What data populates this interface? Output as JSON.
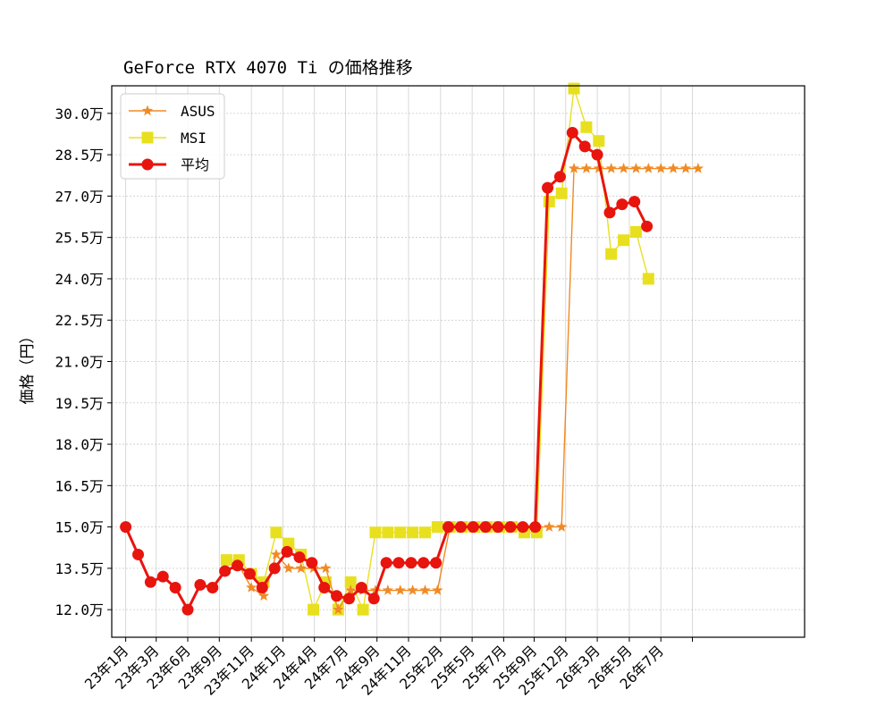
{
  "chart_data": {
    "type": "line",
    "title": "GeForce RTX 4070 Ti の価格推移",
    "xlabel": "",
    "ylabel": "価格（円）",
    "ylim": [
      11.0,
      31.0
    ],
    "yticks": [
      "12.0万",
      "13.5万",
      "15.0万",
      "16.5万",
      "18.0万",
      "19.5万",
      "21.0万",
      "22.5万",
      "24.0万",
      "25.5万",
      "27.0万",
      "28.5万",
      "30.0万"
    ],
    "ytick_values": [
      12.0,
      13.5,
      15.0,
      16.5,
      18.0,
      19.5,
      21.0,
      22.5,
      24.0,
      25.5,
      27.0,
      28.5,
      30.0
    ],
    "xlim": [
      "2022-12-05",
      "2026-08-06"
    ],
    "x_ticks": [
      {
        "label": "23年1月",
        "date": "2023-01-01"
      },
      {
        "label": "23年3月",
        "date": "2023-03-01"
      },
      {
        "label": "23年6月",
        "date": "2023-05-01"
      },
      {
        "label": "23年9月",
        "date": "2023-07-01"
      },
      {
        "label": "23年11月",
        "date": "2023-09-01"
      },
      {
        "label": "24年1月",
        "date": "2023-11-01"
      },
      {
        "label": "24年4月",
        "date": "2024-01-01"
      },
      {
        "label": "24年7月",
        "date": "2024-03-01"
      },
      {
        "label": "24年9月",
        "date": "2024-05-01"
      },
      {
        "label": "24年11月",
        "date": "2024-07-01"
      },
      {
        "label": "25年2月",
        "date": "2024-09-01"
      },
      {
        "label": "25年5月",
        "date": "2024-11-01"
      },
      {
        "label": "25年7月",
        "date": "2025-01-01"
      },
      {
        "label": "25年9月",
        "date": "2025-03-01"
      },
      {
        "label": "25年12月",
        "date": "2025-05-01"
      },
      {
        "label": "26年3月",
        "date": "2025-07-01"
      },
      {
        "label": "26年5月",
        "date": "2025-09-01"
      },
      {
        "label": "26年7月",
        "date": "2025-11-01"
      },
      {
        "label": "",
        "date": "2026-01-01"
      }
    ],
    "grid": true,
    "legend_position": "top-left",
    "series": [
      {
        "name": "ASUS",
        "color": "#f08a24",
        "marker": "star",
        "points": [
          [
            "2023-08-08",
            13.6
          ],
          [
            "2023-09-01",
            12.8
          ],
          [
            "2023-09-25",
            12.5
          ],
          [
            "2023-10-19",
            14.0
          ],
          [
            "2023-11-12",
            13.5
          ],
          [
            "2023-12-06",
            13.5
          ],
          [
            "2023-12-30",
            13.5
          ],
          [
            "2024-01-23",
            13.5
          ],
          [
            "2024-02-16",
            12.0
          ],
          [
            "2024-03-11",
            12.7
          ],
          [
            "2024-04-04",
            12.7
          ],
          [
            "2024-04-28",
            12.7
          ],
          [
            "2024-05-22",
            12.7
          ],
          [
            "2024-06-15",
            12.7
          ],
          [
            "2024-07-09",
            12.7
          ],
          [
            "2024-08-02",
            12.7
          ],
          [
            "2024-08-26",
            12.7
          ],
          [
            "2024-09-19",
            15.0
          ],
          [
            "2024-10-13",
            15.0
          ],
          [
            "2024-11-06",
            15.0
          ],
          [
            "2024-11-30",
            15.0
          ],
          [
            "2024-12-24",
            15.0
          ],
          [
            "2025-01-17",
            15.0
          ],
          [
            "2025-02-10",
            15.0
          ],
          [
            "2025-03-06",
            15.0
          ],
          [
            "2025-03-30",
            15.0
          ],
          [
            "2025-04-23",
            15.0
          ],
          [
            "2025-05-17",
            28.0
          ],
          [
            "2025-06-10",
            28.0
          ],
          [
            "2025-07-04",
            28.0
          ],
          [
            "2025-07-28",
            28.0
          ],
          [
            "2025-08-21",
            28.0
          ],
          [
            "2025-09-14",
            28.0
          ],
          [
            "2025-10-08",
            28.0
          ],
          [
            "2025-11-01",
            28.0
          ],
          [
            "2025-11-25",
            28.0
          ],
          [
            "2025-12-19",
            28.0
          ],
          [
            "2026-01-12",
            28.0
          ]
        ]
      },
      {
        "name": "MSI",
        "color": "#e8e01e",
        "marker": "square",
        "points": [
          [
            "2023-07-15",
            13.8
          ],
          [
            "2023-08-08",
            13.8
          ],
          [
            "2023-09-01",
            13.3
          ],
          [
            "2023-09-25",
            13.0
          ],
          [
            "2023-10-19",
            14.8
          ],
          [
            "2023-11-12",
            14.4
          ],
          [
            "2023-12-06",
            14.0
          ],
          [
            "2023-12-30",
            12.0
          ],
          [
            "2024-01-23",
            13.0
          ],
          [
            "2024-02-16",
            12.0
          ],
          [
            "2024-03-11",
            13.0
          ],
          [
            "2024-04-04",
            12.0
          ],
          [
            "2024-04-28",
            14.8
          ],
          [
            "2024-05-22",
            14.8
          ],
          [
            "2024-06-15",
            14.8
          ],
          [
            "2024-07-09",
            14.8
          ],
          [
            "2024-08-02",
            14.8
          ],
          [
            "2024-08-26",
            15.0
          ],
          [
            "2024-09-19",
            15.0
          ],
          [
            "2024-10-13",
            15.0
          ],
          [
            "2024-11-06",
            15.0
          ],
          [
            "2024-11-30",
            15.0
          ],
          [
            "2024-12-24",
            15.0
          ],
          [
            "2025-01-17",
            15.0
          ],
          [
            "2025-02-10",
            14.8
          ],
          [
            "2025-03-06",
            14.8
          ],
          [
            "2025-03-30",
            26.8
          ],
          [
            "2025-04-23",
            27.1
          ],
          [
            "2025-05-17",
            30.9
          ],
          [
            "2025-06-10",
            29.5
          ],
          [
            "2025-07-04",
            29.0
          ],
          [
            "2025-07-28",
            24.9
          ],
          [
            "2025-08-21",
            25.4
          ],
          [
            "2025-09-14",
            25.7
          ],
          [
            "2025-10-08",
            24.0
          ]
        ]
      },
      {
        "name": "平均",
        "color": "#e8140e",
        "marker": "circle",
        "points": [
          [
            "2023-01-01",
            15.0
          ],
          [
            "2023-01-25",
            14.0
          ],
          [
            "2023-02-18",
            13.0
          ],
          [
            "2023-03-14",
            13.2
          ],
          [
            "2023-04-07",
            12.8
          ],
          [
            "2023-05-01",
            12.0
          ],
          [
            "2023-05-25",
            12.9
          ],
          [
            "2023-06-18",
            12.8
          ],
          [
            "2023-07-12",
            13.4
          ],
          [
            "2023-08-05",
            13.6
          ],
          [
            "2023-08-29",
            13.3
          ],
          [
            "2023-09-22",
            12.8
          ],
          [
            "2023-10-16",
            13.5
          ],
          [
            "2023-11-09",
            14.1
          ],
          [
            "2023-12-03",
            13.9
          ],
          [
            "2023-12-27",
            13.7
          ],
          [
            "2024-01-20",
            12.8
          ],
          [
            "2024-02-13",
            12.5
          ],
          [
            "2024-03-08",
            12.4
          ],
          [
            "2024-04-01",
            12.8
          ],
          [
            "2024-04-25",
            12.4
          ],
          [
            "2024-05-19",
            13.7
          ],
          [
            "2024-06-12",
            13.7
          ],
          [
            "2024-07-06",
            13.7
          ],
          [
            "2024-07-30",
            13.7
          ],
          [
            "2024-08-23",
            13.7
          ],
          [
            "2024-09-16",
            15.0
          ],
          [
            "2024-10-10",
            15.0
          ],
          [
            "2024-11-03",
            15.0
          ],
          [
            "2024-11-27",
            15.0
          ],
          [
            "2024-12-21",
            15.0
          ],
          [
            "2025-01-14",
            15.0
          ],
          [
            "2025-02-07",
            15.0
          ],
          [
            "2025-03-03",
            15.0
          ],
          [
            "2025-03-27",
            27.3
          ],
          [
            "2025-04-20",
            27.7
          ],
          [
            "2025-05-14",
            29.3
          ],
          [
            "2025-06-07",
            28.8
          ],
          [
            "2025-06-31",
            28.5
          ],
          [
            "2025-07-25",
            26.4
          ],
          [
            "2025-08-18",
            26.7
          ],
          [
            "2025-09-11",
            26.8
          ],
          [
            "2025-10-05",
            25.9
          ]
        ]
      }
    ]
  }
}
